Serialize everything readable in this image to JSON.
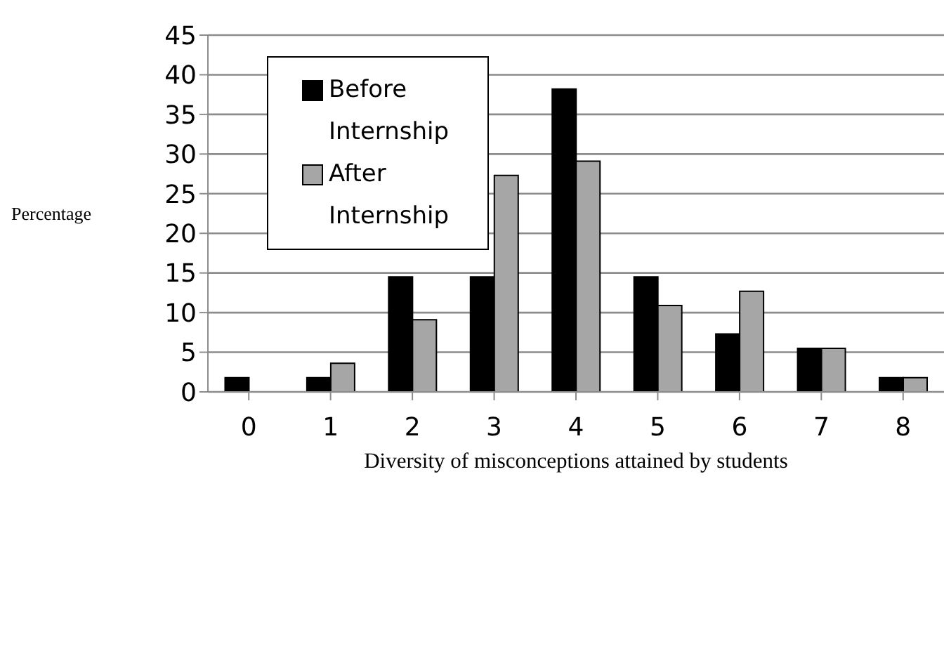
{
  "chart_data": {
    "type": "bar",
    "xlabel": "Diversity of misconceptions attained by students",
    "ylabel": "Percentage",
    "categories": [
      "0",
      "1",
      "2",
      "3",
      "4",
      "5",
      "6",
      "7",
      "8"
    ],
    "series": [
      {
        "name": "Before Internship",
        "color": "#000000",
        "values": [
          1.8,
          1.8,
          14.5,
          14.5,
          38.2,
          14.5,
          7.3,
          5.5,
          1.8
        ]
      },
      {
        "name": "After Internship",
        "color": "#a6a6a6",
        "values": [
          0,
          3.6,
          9.1,
          27.3,
          29.1,
          10.9,
          12.7,
          5.5,
          1.8
        ]
      }
    ],
    "ylim": [
      0,
      45
    ],
    "yticks": [
      0,
      5,
      10,
      15,
      20,
      25,
      30,
      35,
      40,
      45
    ],
    "grid": "y",
    "legend": "top left"
  }
}
